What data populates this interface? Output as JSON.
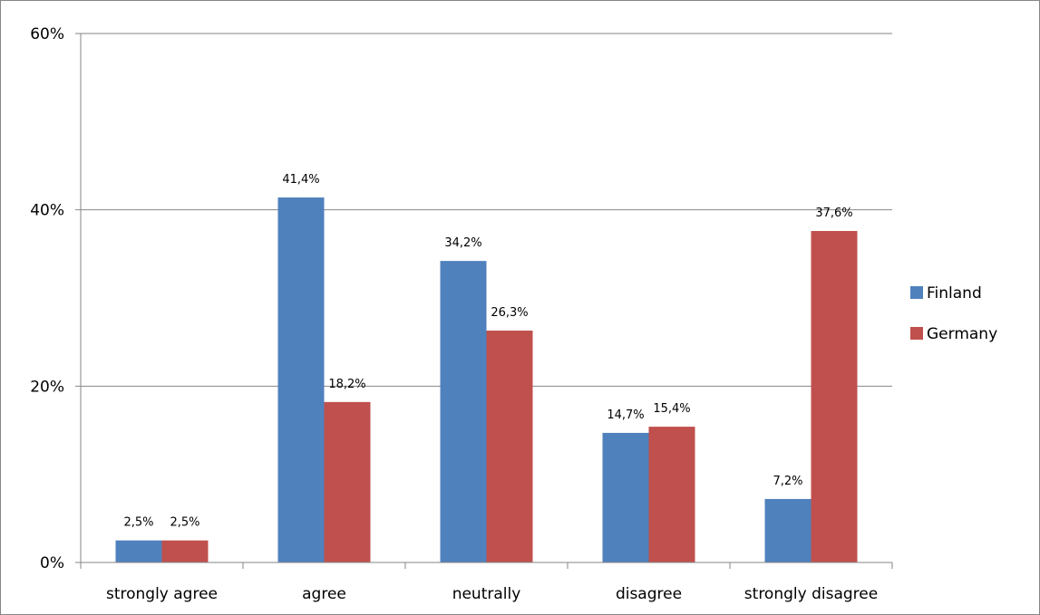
{
  "chart_data": {
    "type": "bar",
    "categories": [
      "strongly agree",
      "agree",
      "neutrally",
      "disagree",
      "strongly disagree"
    ],
    "series": [
      {
        "name": "Finland",
        "values": [
          2.5,
          41.4,
          34.2,
          14.7,
          7.2
        ],
        "labels": [
          "2,5%",
          "41,4%",
          "34,2%",
          "14,7%",
          "7,2%"
        ]
      },
      {
        "name": "Germany",
        "values": [
          2.5,
          18.2,
          26.3,
          15.4,
          37.6
        ],
        "labels": [
          "2,5%",
          "18,2%",
          "26,3%",
          "15,4%",
          "37,6%"
        ]
      }
    ],
    "yticks": [
      0,
      20,
      40,
      60
    ],
    "ytick_labels": [
      "0%",
      "20%",
      "40%",
      "60%"
    ],
    "ylim": [
      0,
      60
    ],
    "grid": true,
    "legend_position": "right",
    "colors": {
      "Finland": "#4F81BD",
      "Germany": "#C0504D",
      "grid": "#868686",
      "axis": "#868686"
    }
  }
}
